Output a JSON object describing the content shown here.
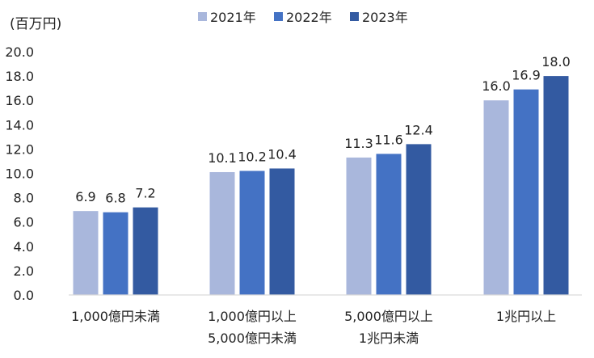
{
  "chart_data": {
    "type": "bar",
    "title": "",
    "unit_label": "(百万円)",
    "xlabel": "",
    "ylabel": "",
    "ylim": [
      0,
      20
    ],
    "yticks": [
      "0.0",
      "2.0",
      "4.0",
      "6.0",
      "8.0",
      "10.0",
      "12.0",
      "14.0",
      "16.0",
      "18.0",
      "20.0"
    ],
    "grid": false,
    "legend_position": "top",
    "categories": [
      [
        "1,000億円未満"
      ],
      [
        "1,000億円以上",
        "5,000億円未満"
      ],
      [
        "5,000億円以上",
        "1兆円未満"
      ],
      [
        "1兆円以上"
      ]
    ],
    "series": [
      {
        "name": "2021年",
        "color": "#a9b7dc",
        "values": [
          6.9,
          10.1,
          11.3,
          16.0
        ],
        "labels": [
          "6.9",
          "10.1",
          "11.3",
          "16.0"
        ]
      },
      {
        "name": "2022年",
        "color": "#4472c4",
        "values": [
          6.8,
          10.2,
          11.6,
          16.9
        ],
        "labels": [
          "6.8",
          "10.2",
          "11.6",
          "16.9"
        ]
      },
      {
        "name": "2023年",
        "color": "#335aa1",
        "values": [
          7.2,
          10.4,
          12.4,
          18.0
        ],
        "labels": [
          "7.2",
          "10.4",
          "12.4",
          "18.0"
        ]
      }
    ]
  }
}
